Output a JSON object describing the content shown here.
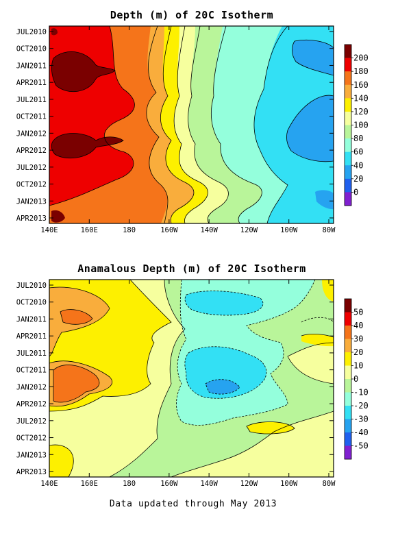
{
  "chart_data": [
    {
      "type": "heatmap",
      "title": "Depth (m) of 20C Isotherm",
      "x_ticks": [
        "140E",
        "160E",
        "180",
        "160W",
        "140W",
        "120W",
        "100W",
        "80W"
      ],
      "y_ticks": [
        "JUL2010",
        "OCT2010",
        "JAN2011",
        "APR2011",
        "JUL2011",
        "OCT2011",
        "JAN2012",
        "APR2012",
        "JUL2012",
        "OCT2012",
        "JAN2013",
        "APR2013"
      ],
      "colorbar": {
        "labels": [
          "200",
          "180",
          "160",
          "140",
          "120",
          "100",
          "80",
          "60",
          "40",
          "20",
          "0"
        ],
        "colors": [
          "#7a0000",
          "#ee0000",
          "#f5741a",
          "#f9ad3c",
          "#fdf000",
          "#f6ff9e",
          "#b9f59a",
          "#94ffdc",
          "#33e0f4",
          "#26a3f0",
          "#2060ee",
          "#8020d0"
        ]
      },
      "approx_depth_by_longitude": {
        "longitudes": [
          "140E",
          "160E",
          "180",
          "160W",
          "140W",
          "120W",
          "100W",
          "80W"
        ],
        "depth_m": [
          190,
          185,
          170,
          135,
          100,
          70,
          50,
          40
        ]
      }
    },
    {
      "type": "heatmap",
      "title": "Anamalous Depth (m) of 20C Isotherm",
      "x_ticks": [
        "140E",
        "160E",
        "180",
        "160W",
        "140W",
        "120W",
        "100W",
        "80W"
      ],
      "y_ticks": [
        "JUL2010",
        "OCT2010",
        "JAN2011",
        "APR2011",
        "JUL2011",
        "OCT2011",
        "JAN2012",
        "APR2012",
        "JUL2012",
        "OCT2012",
        "JAN2013",
        "APR2013"
      ],
      "colorbar": {
        "labels": [
          "50",
          "40",
          "30",
          "20",
          "10",
          "0",
          "-10",
          "-20",
          "-30",
          "-40",
          "-50"
        ],
        "colors": [
          "#7a0000",
          "#ee0000",
          "#f5741a",
          "#f9ad3c",
          "#fdf000",
          "#f6ff9e",
          "#b9f59a",
          "#94ffdc",
          "#33e0f4",
          "#26a3f0",
          "#2060ee",
          "#8020d0"
        ]
      }
    }
  ],
  "footer": "Data updated through May 2013"
}
